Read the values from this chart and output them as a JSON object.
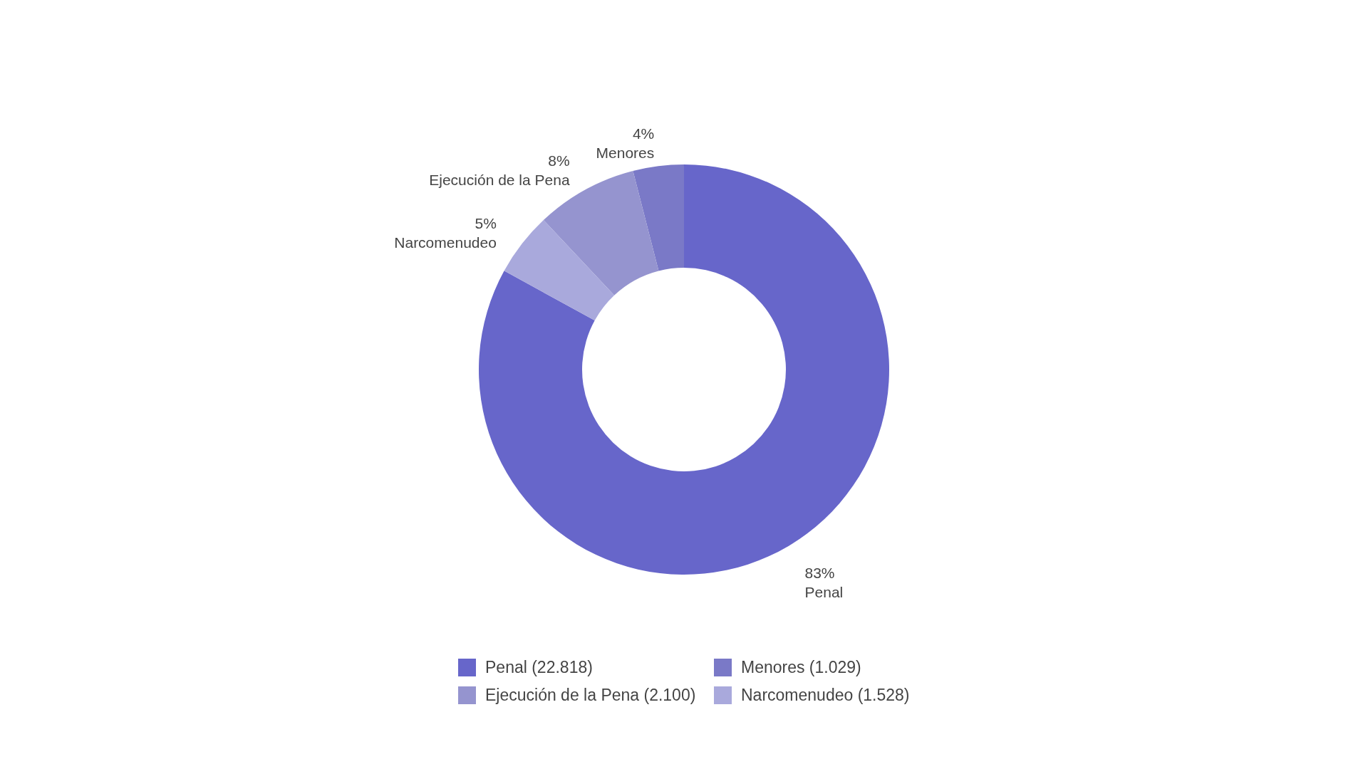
{
  "chart_data": {
    "type": "donut",
    "categories": [
      "Penal (22.818)",
      "Menores (1.029)",
      "Ejecución de la Pena (2.100)",
      "Narcomenudeo (1.528)"
    ],
    "values": [
      83,
      4,
      8,
      5
    ],
    "colors": [
      "#6766ca",
      "#7a79c7",
      "#9594cf",
      "#a9a9dc"
    ],
    "value_labels": [
      "83%\nPenal",
      "4%\nMenores",
      "8%\nEjecución de la Pena",
      "5%\nNarcomenudeo"
    ],
    "legend": "bottom"
  }
}
